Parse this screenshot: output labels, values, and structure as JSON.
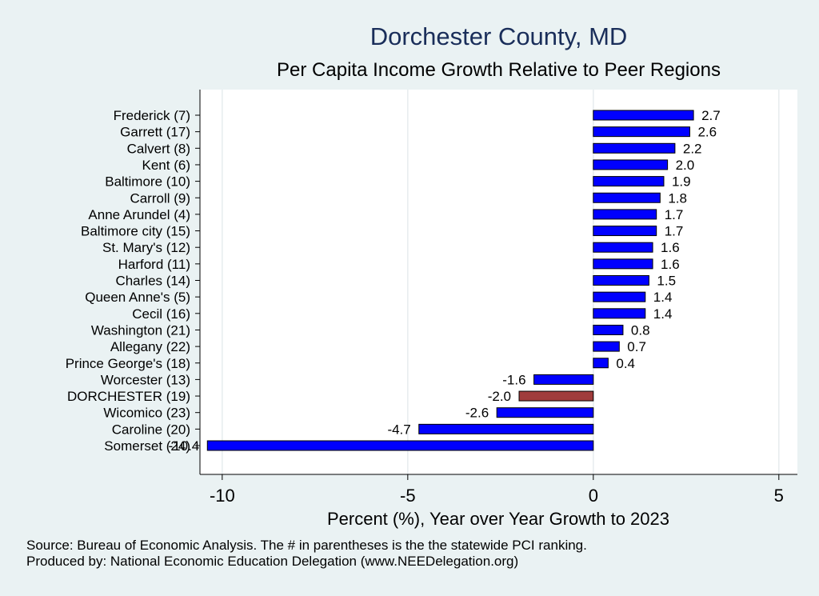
{
  "chart_data": {
    "type": "bar",
    "orientation": "horizontal",
    "title": "Dorchester County, MD",
    "subtitle": "Per Capita Income Growth Relative to Peer Regions",
    "xlabel": "Percent (%), Year over Year Growth to 2023",
    "ylabel": "",
    "xlim": [
      -10.6,
      5.5
    ],
    "xticks": [
      -10,
      -5,
      0,
      5
    ],
    "xtick_labels": [
      "-10",
      "-5",
      "0",
      "5"
    ],
    "grid": true,
    "categories": [
      "Frederick  (7)",
      "Garrett (17)",
      "Calvert  (8)",
      "Kent  (6)",
      "Baltimore (10)",
      "Carroll  (9)",
      "Anne Arundel  (4)",
      "Baltimore city (15)",
      "St. Mary's (12)",
      "Harford (11)",
      "Charles (14)",
      "Queen Anne's  (5)",
      "Cecil (16)",
      "Washington (21)",
      "Allegany (22)",
      "Prince George's (18)",
      "Worcester (13)",
      "DORCHESTER (19)",
      "Wicomico (23)",
      "Caroline (20)",
      "Somerset (24)"
    ],
    "values": [
      2.7,
      2.6,
      2.2,
      2.0,
      1.9,
      1.8,
      1.7,
      1.7,
      1.6,
      1.6,
      1.5,
      1.4,
      1.4,
      0.8,
      0.7,
      0.4,
      -1.6,
      -2.0,
      -2.6,
      -4.7,
      -10.4
    ],
    "value_labels": [
      "2.7",
      "2.6",
      "2.2",
      "2.0",
      "1.9",
      "1.8",
      "1.7",
      "1.7",
      "1.6",
      "1.6",
      "1.5",
      "1.4",
      "1.4",
      "0.8",
      "0.7",
      "0.4",
      "-1.6",
      "-2.0",
      "-2.6",
      "-4.7",
      "-10.4"
    ],
    "highlight_index": 17,
    "colors": {
      "bar": "#0000ff",
      "highlight": "#a03c3c",
      "plot_bg": "#ffffff",
      "page_bg": "#eaf2f3",
      "grid": "#e6ecee",
      "title": "#1a2e5a"
    }
  },
  "notes": {
    "source": "Source: Bureau of Economic Analysis. The # in parentheses is the the statewide PCI ranking.",
    "producer": "Produced by: National Economic Education Delegation (www.NEEDelegation.org)"
  }
}
